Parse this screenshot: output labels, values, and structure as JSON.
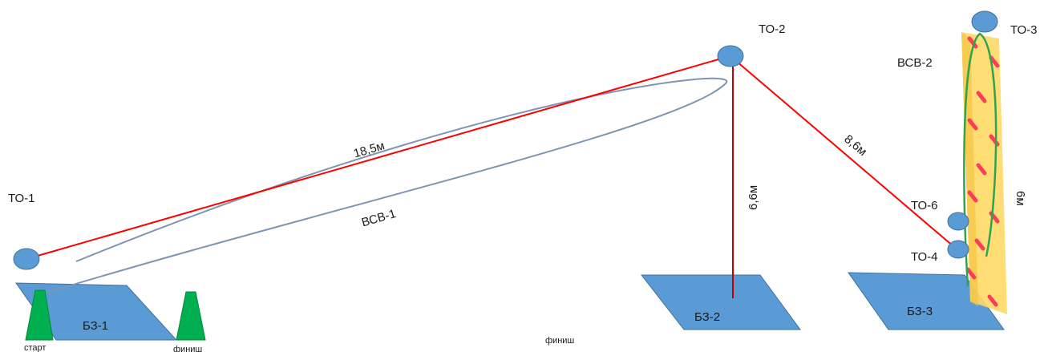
{
  "nodes": {
    "to1": "ТО-1",
    "to2": "ТО-2",
    "to3": "ТО-3",
    "to4": "ТО-4",
    "to6": "ТО-6"
  },
  "zones": {
    "bz1": "БЗ-1",
    "bz2": "БЗ-2",
    "bz3": "БЗ-3"
  },
  "rope_sections": {
    "vsv1": "ВСВ-1",
    "vsv2": "ВСВ-2"
  },
  "distances": {
    "to1_to2": "18,5м",
    "to2_bz2": "6,6м",
    "to2_to4": "8,6м",
    "wall_height": "6м"
  },
  "markers": {
    "start": "старт",
    "finish_cone": "финиш",
    "finish_center": "финиш"
  },
  "colors": {
    "node_fill": "#5b9bd5",
    "rope_line": "#ff0000",
    "zone_fill": "#5b9bd5",
    "cone_fill": "#00b050",
    "wall_fill": "#ffd966",
    "hold_color": "#ff3b5c",
    "loop_stroke": "#7f96b0"
  }
}
